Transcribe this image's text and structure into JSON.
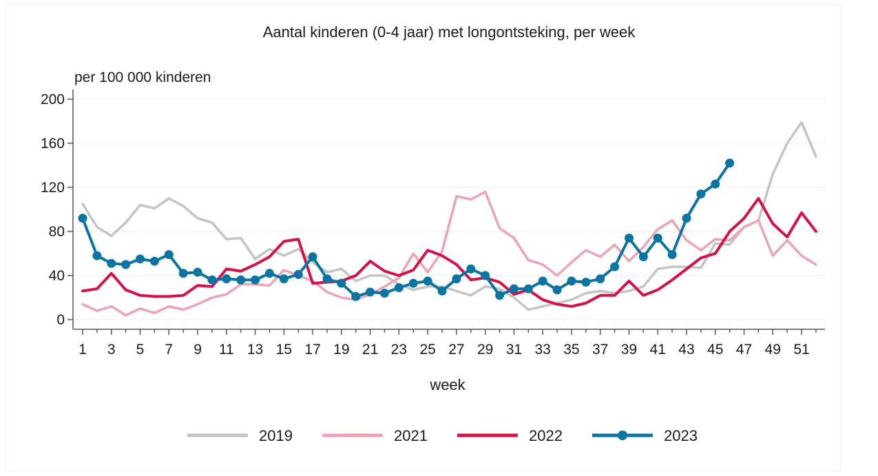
{
  "chart_data": {
    "type": "line",
    "title": "Aantal kinderen (0-4 jaar) met longontsteking, per week",
    "ylabel": "per 100 000 kinderen",
    "xlabel": "week",
    "ylim": [
      0,
      200
    ],
    "yticks": [
      0,
      40,
      80,
      120,
      160,
      200
    ],
    "xlim": [
      1,
      52
    ],
    "xticks": [
      1,
      3,
      5,
      7,
      9,
      11,
      13,
      15,
      17,
      19,
      21,
      23,
      25,
      27,
      29,
      31,
      33,
      35,
      37,
      39,
      41,
      43,
      45,
      47,
      49,
      51
    ],
    "grid": true,
    "legend_position": "bottom",
    "series": [
      {
        "name": "2019",
        "color": "#c4c4c4",
        "markers": false,
        "x": [
          1,
          2,
          3,
          4,
          5,
          6,
          7,
          8,
          9,
          10,
          11,
          12,
          13,
          14,
          15,
          16,
          17,
          18,
          19,
          20,
          21,
          22,
          23,
          24,
          25,
          26,
          27,
          28,
          29,
          30,
          31,
          32,
          33,
          34,
          35,
          36,
          37,
          38,
          39,
          40,
          41,
          42,
          43,
          44,
          45,
          46,
          47,
          48,
          49,
          50,
          51,
          52
        ],
        "values": [
          105,
          84,
          76,
          88,
          104,
          101,
          110,
          103,
          92,
          88,
          73,
          74,
          55,
          64,
          58,
          64,
          52,
          43,
          46,
          35,
          40,
          40,
          32,
          27,
          30,
          30,
          26,
          22,
          30,
          28,
          20,
          9,
          12,
          15,
          18,
          24,
          26,
          24,
          26,
          30,
          46,
          48,
          48,
          47,
          69,
          68,
          84,
          90,
          132,
          160,
          179,
          148
        ]
      },
      {
        "name": "2021",
        "color": "#eba3b5",
        "markers": false,
        "x": [
          1,
          2,
          3,
          4,
          5,
          6,
          7,
          8,
          9,
          10,
          11,
          12,
          13,
          14,
          15,
          16,
          17,
          18,
          19,
          20,
          21,
          22,
          23,
          24,
          25,
          26,
          27,
          28,
          29,
          30,
          31,
          32,
          33,
          34,
          35,
          36,
          37,
          38,
          39,
          40,
          41,
          42,
          43,
          44,
          45,
          46,
          47,
          48,
          49,
          50,
          51,
          52
        ],
        "values": [
          14,
          8,
          12,
          4,
          10,
          6,
          12,
          9,
          14,
          20,
          23,
          32,
          32,
          31,
          45,
          40,
          35,
          25,
          20,
          18,
          23,
          30,
          38,
          60,
          43,
          62,
          112,
          109,
          116,
          83,
          74,
          54,
          50,
          40,
          52,
          63,
          57,
          68,
          53,
          66,
          82,
          90,
          72,
          63,
          73,
          72,
          84,
          90,
          58,
          72,
          58,
          50
        ]
      },
      {
        "name": "2022",
        "color": "#d4114a",
        "markers": false,
        "x": [
          1,
          2,
          3,
          4,
          5,
          6,
          7,
          8,
          9,
          10,
          11,
          12,
          13,
          14,
          15,
          16,
          17,
          18,
          19,
          20,
          21,
          22,
          23,
          24,
          25,
          26,
          27,
          28,
          29,
          30,
          31,
          32,
          33,
          34,
          35,
          36,
          37,
          38,
          39,
          40,
          41,
          42,
          43,
          44,
          45,
          46,
          47,
          48,
          49,
          50,
          51,
          52
        ],
        "values": [
          26,
          28,
          42,
          27,
          22,
          21,
          21,
          22,
          31,
          30,
          46,
          44,
          50,
          57,
          71,
          73,
          33,
          34,
          35,
          40,
          53,
          44,
          40,
          45,
          63,
          58,
          50,
          36,
          38,
          34,
          23,
          27,
          18,
          14,
          12,
          15,
          22,
          22,
          35,
          22,
          27,
          36,
          46,
          56,
          60,
          80,
          92,
          110,
          87,
          75,
          97,
          80
        ]
      },
      {
        "name": "2023",
        "color": "#0b74a1",
        "markers": true,
        "x": [
          1,
          2,
          3,
          4,
          5,
          6,
          7,
          8,
          9,
          10,
          11,
          12,
          13,
          14,
          15,
          16,
          17,
          18,
          19,
          20,
          21,
          22,
          23,
          24,
          25,
          26,
          27,
          28,
          29,
          30,
          31,
          32,
          33,
          34,
          35,
          36,
          37,
          38,
          39,
          40,
          41,
          42,
          43,
          44,
          45,
          46
        ],
        "values": [
          92,
          58,
          51,
          50,
          55,
          53,
          59,
          42,
          43,
          36,
          37,
          36,
          36,
          42,
          37,
          41,
          57,
          37,
          33,
          21,
          25,
          24,
          29,
          33,
          35,
          26,
          37,
          46,
          40,
          22,
          28,
          28,
          35,
          27,
          35,
          34,
          37,
          48,
          74,
          57,
          74,
          59,
          92,
          114,
          123,
          142
        ]
      }
    ]
  }
}
